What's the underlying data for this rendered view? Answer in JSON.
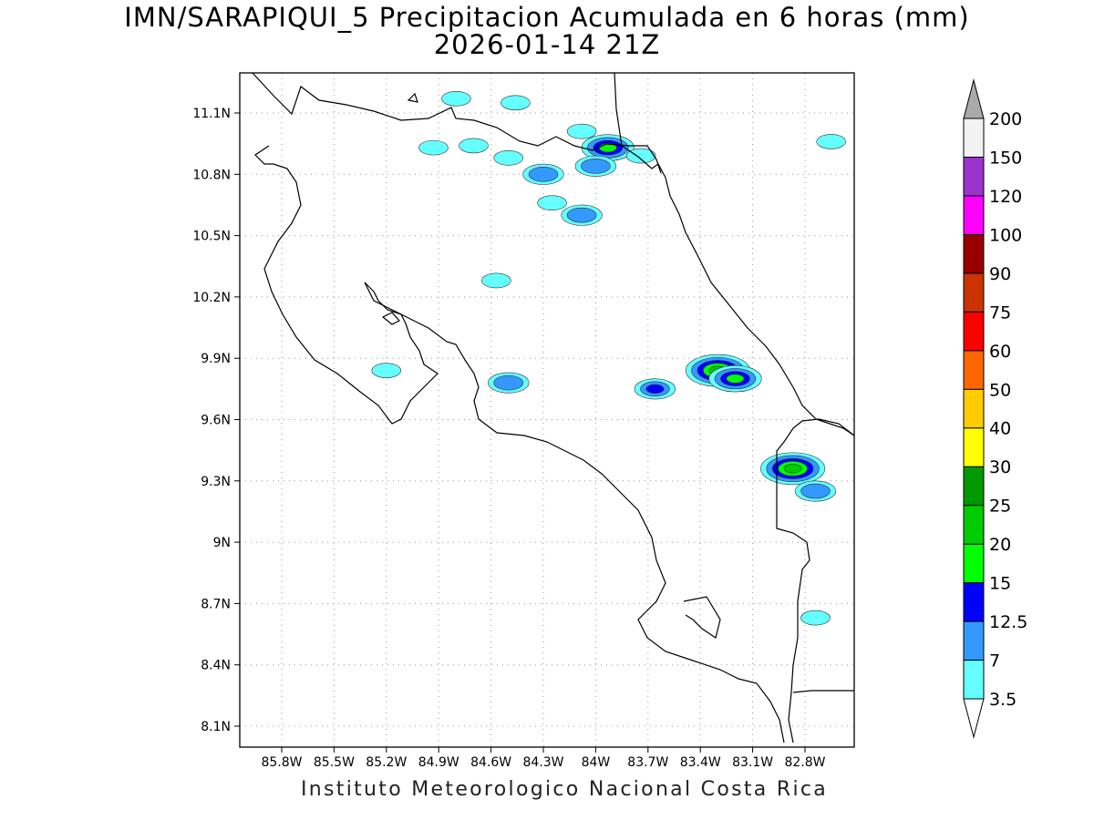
{
  "title": {
    "line1": "IMN/SARAPIQUI_5 Precipitacion Acumulada en 6 horas (mm)",
    "line2": "2026-01-14 21Z"
  },
  "footer": "Instituto Meteorologico Nacional Costa Rica",
  "map": {
    "lon_range": [
      -86.1,
      -82.6
    ],
    "lat_range": [
      8.0,
      11.3
    ],
    "lon_ticks": [
      {
        "v": -85.8,
        "label": "85.8W"
      },
      {
        "v": -85.5,
        "label": "85.5W"
      },
      {
        "v": -85.2,
        "label": "85.2W"
      },
      {
        "v": -84.9,
        "label": "84.9W"
      },
      {
        "v": -84.6,
        "label": "84.6W"
      },
      {
        "v": -84.3,
        "label": "84.3W"
      },
      {
        "v": -84.0,
        "label": "84W"
      },
      {
        "v": -83.7,
        "label": "83.7W"
      },
      {
        "v": -83.4,
        "label": "83.4W"
      },
      {
        "v": -83.1,
        "label": "83.1W"
      },
      {
        "v": -82.8,
        "label": "82.8W"
      }
    ],
    "lat_ticks": [
      {
        "v": 11.1,
        "label": "11.1N"
      },
      {
        "v": 10.8,
        "label": "10.8N"
      },
      {
        "v": 10.5,
        "label": "10.5N"
      },
      {
        "v": 10.2,
        "label": "10.2N"
      },
      {
        "v": 9.9,
        "label": "9.9N"
      },
      {
        "v": 9.6,
        "label": "9.6N"
      },
      {
        "v": 9.3,
        "label": "9.3N"
      },
      {
        "v": 9.0,
        "label": "9N"
      },
      {
        "v": 8.7,
        "label": "8.7N"
      },
      {
        "v": 8.4,
        "label": "8.4N"
      },
      {
        "v": 8.1,
        "label": "8.1N"
      }
    ],
    "grid": true,
    "precip_cells": [
      {
        "lon": -84.8,
        "lat": 11.17,
        "level": 1
      },
      {
        "lon": -84.46,
        "lat": 11.15,
        "level": 1
      },
      {
        "lon": -84.93,
        "lat": 10.93,
        "level": 1
      },
      {
        "lon": -84.7,
        "lat": 10.94,
        "level": 1
      },
      {
        "lon": -84.5,
        "lat": 10.88,
        "level": 1
      },
      {
        "lon": -84.08,
        "lat": 11.01,
        "level": 1
      },
      {
        "lon": -83.93,
        "lat": 10.93,
        "level": 4
      },
      {
        "lon": -84.0,
        "lat": 10.84,
        "level": 2
      },
      {
        "lon": -84.3,
        "lat": 10.8,
        "level": 2
      },
      {
        "lon": -84.25,
        "lat": 10.66,
        "level": 1
      },
      {
        "lon": -84.08,
        "lat": 10.6,
        "level": 2
      },
      {
        "lon": -83.74,
        "lat": 10.89,
        "level": 1
      },
      {
        "lon": -84.5,
        "lat": 9.78,
        "level": 2
      },
      {
        "lon": -83.66,
        "lat": 9.75,
        "level": 3
      },
      {
        "lon": -83.3,
        "lat": 9.84,
        "level": 5
      },
      {
        "lon": -83.2,
        "lat": 9.8,
        "level": 4
      },
      {
        "lon": -82.87,
        "lat": 9.36,
        "level": 5
      },
      {
        "lon": -82.74,
        "lat": 9.25,
        "level": 2
      },
      {
        "lon": -82.74,
        "lat": 8.63,
        "level": 1
      },
      {
        "lon": -82.65,
        "lat": 10.96,
        "level": 1
      },
      {
        "lon": -85.2,
        "lat": 9.84,
        "level": 1
      },
      {
        "lon": -84.57,
        "lat": 10.28,
        "level": 1
      }
    ]
  },
  "colorbar": {
    "labels": [
      "3.5",
      "7",
      "12.5",
      "15",
      "20",
      "25",
      "30",
      "40",
      "50",
      "60",
      "75",
      "90",
      "100",
      "120",
      "150",
      "200"
    ],
    "colors": [
      "#ffffff",
      "#66ffff",
      "#3399ff",
      "#0000ff",
      "#00ff00",
      "#00cc00",
      "#009900",
      "#ffff00",
      "#ffcc00",
      "#ff6600",
      "#ff0000",
      "#cc3300",
      "#990000",
      "#ff00ff",
      "#9933cc",
      "#f2f2f2",
      "#aaaaaa"
    ]
  }
}
